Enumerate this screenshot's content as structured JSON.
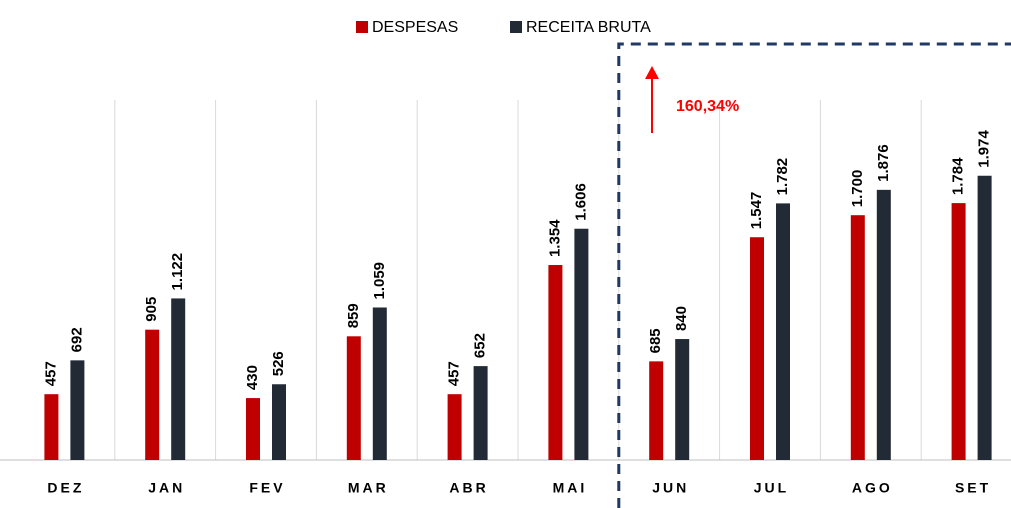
{
  "chart_data": {
    "type": "bar",
    "categories": [
      "DEZ",
      "JAN",
      "FEV",
      "MAR",
      "ABR",
      "MAI",
      "JUN",
      "JUL",
      "AGO",
      "SET"
    ],
    "series": [
      {
        "name": "DESPESAS",
        "color": "#c00000",
        "values": [
          457,
          905,
          430,
          859,
          457,
          1354,
          685,
          1547,
          1700,
          1784
        ],
        "value_labels": [
          "457",
          "905",
          "430",
          "859",
          "457",
          "1.354",
          "685",
          "1.547",
          "1.700",
          "1.784"
        ]
      },
      {
        "name": "RECEITA BRUTA",
        "color": "#222a35",
        "values": [
          692,
          1122,
          526,
          1059,
          652,
          1606,
          840,
          1782,
          1876,
          1974
        ],
        "value_labels": [
          "692",
          "1.122",
          "526",
          "1.059",
          "652",
          "1.606",
          "840",
          "1.782",
          "1.876",
          "1.974"
        ]
      }
    ],
    "ylim": [
      0,
      2500
    ],
    "annotation": "160,34%",
    "annotation_color": "#ff0000",
    "highlight_color": "#1f3864"
  }
}
